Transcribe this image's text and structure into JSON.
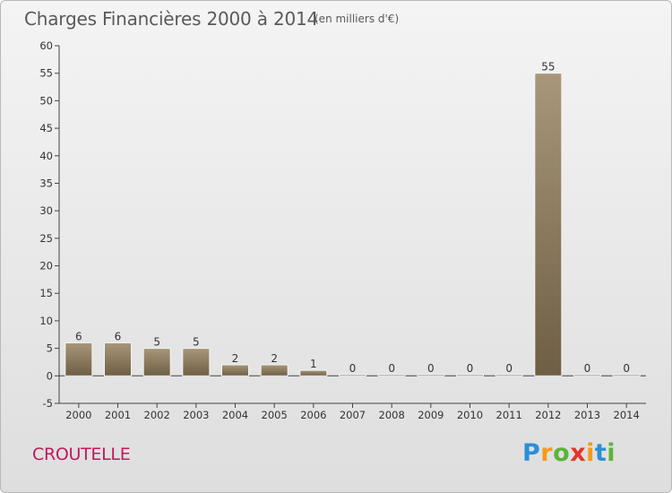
{
  "title": "Charges Financières 2000 à 2014",
  "subtitle": "(en milliers d'€)",
  "place": "CROUTELLE",
  "brand": "Proxiti",
  "chart_data": {
    "type": "bar",
    "categories": [
      "2000",
      "2001",
      "2002",
      "2003",
      "2004",
      "2005",
      "2006",
      "2007",
      "2008",
      "2009",
      "2010",
      "2011",
      "2012",
      "2013",
      "2014"
    ],
    "values": [
      6,
      6,
      5,
      5,
      2,
      2,
      1,
      0,
      0,
      0,
      0,
      0,
      55,
      0,
      0
    ],
    "title": "Charges Financières 2000 à 2014",
    "ylim": [
      -5,
      60
    ],
    "yticks": [
      -5,
      0,
      5,
      10,
      15,
      20,
      25,
      30,
      35,
      40,
      45,
      50,
      55,
      60
    ],
    "grid": false,
    "bar_color": "#7a6a50",
    "bar_highlight": "#a8977a"
  }
}
